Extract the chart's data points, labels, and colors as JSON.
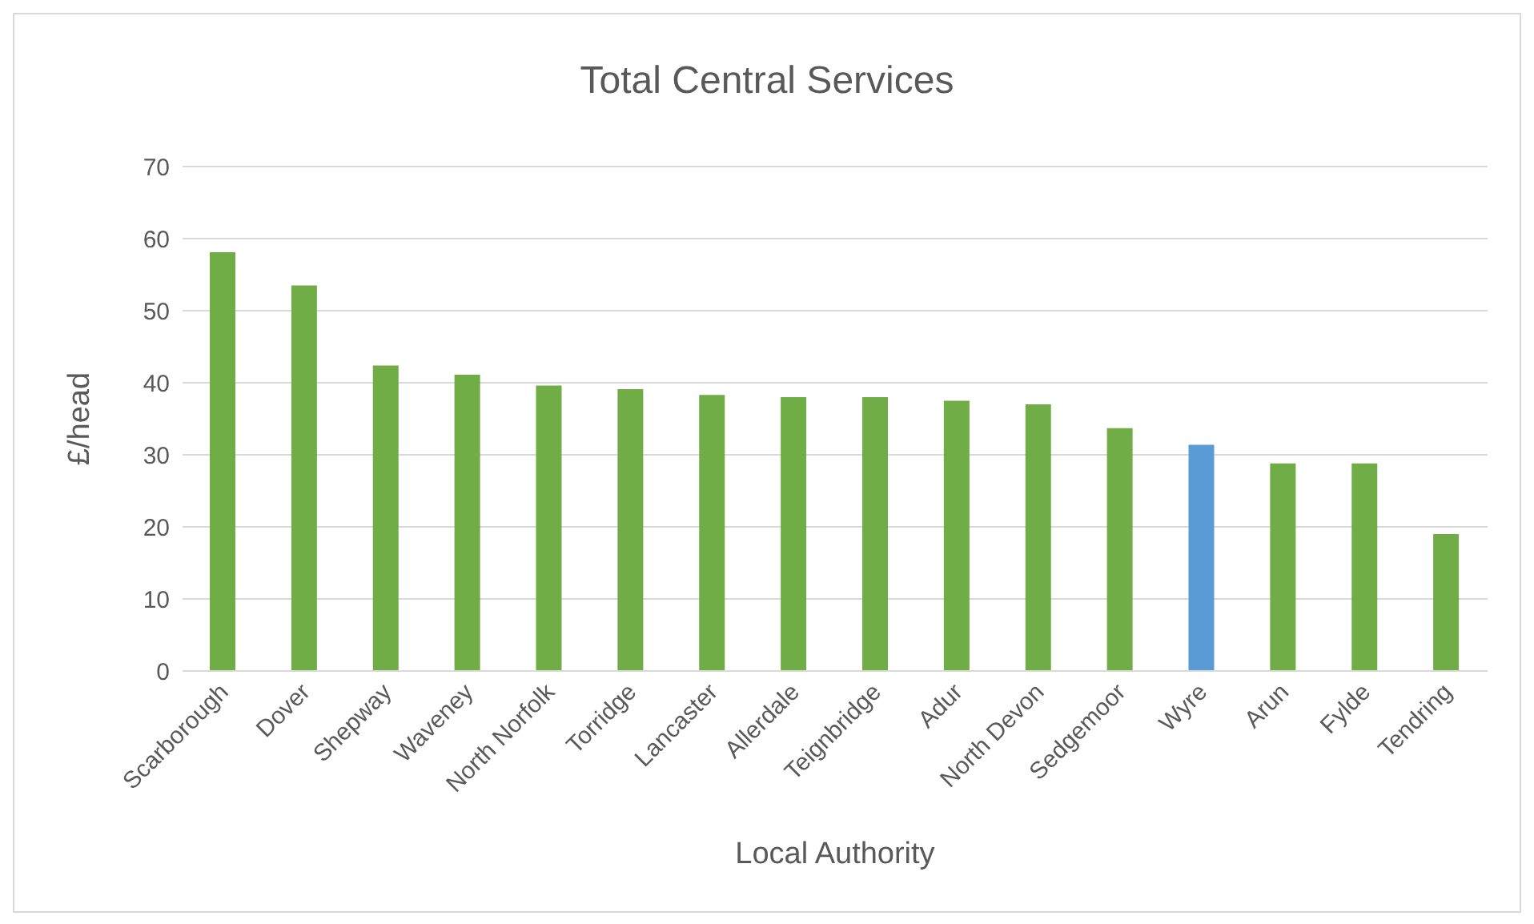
{
  "chart_data": {
    "type": "bar",
    "title": "Total Central Services",
    "xlabel": "Local Authority",
    "ylabel": "£/head",
    "categories": [
      "Scarborough",
      "Dover",
      "Shepway",
      "Waveney",
      "North Norfolk",
      "Torridge",
      "Lancaster",
      "Allerdale",
      "Teignbridge",
      "Adur",
      "North Devon",
      "Sedgemoor",
      "Wyre",
      "Arun",
      "Fylde",
      "Tendring"
    ],
    "values": [
      58.1,
      53.5,
      42.4,
      41.1,
      39.6,
      39.1,
      38.3,
      38,
      38,
      37.5,
      37,
      33.7,
      31.4,
      28.8,
      28.8,
      19
    ],
    "colors": [
      "#70ad47",
      "#70ad47",
      "#70ad47",
      "#70ad47",
      "#70ad47",
      "#70ad47",
      "#70ad47",
      "#70ad47",
      "#70ad47",
      "#70ad47",
      "#70ad47",
      "#70ad47",
      "#5b9bd5",
      "#70ad47",
      "#70ad47",
      "#70ad47"
    ],
    "ylim": [
      0,
      70
    ],
    "yticks": [
      0,
      10,
      20,
      30,
      40,
      50,
      60,
      70
    ],
    "grid": "y"
  }
}
